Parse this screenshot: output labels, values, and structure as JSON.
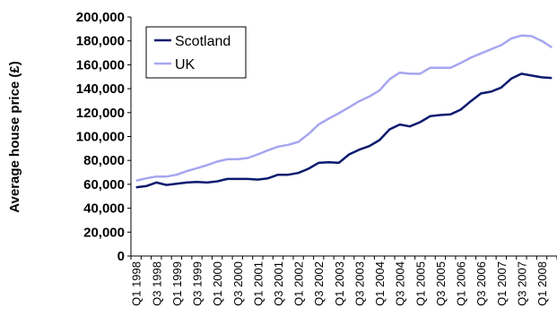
{
  "chart_data": {
    "type": "line",
    "ylabel": "Average house price (£)",
    "ylim": [
      0,
      200000
    ],
    "yticks": [
      0,
      20000,
      40000,
      60000,
      80000,
      100000,
      120000,
      140000,
      160000,
      180000,
      200000
    ],
    "ytick_labels": [
      "0",
      "20,000",
      "40,000",
      "60,000",
      "80,000",
      "100,000",
      "120,000",
      "140,000",
      "160,000",
      "180,000",
      "200,000"
    ],
    "x": [
      "Q1 1998",
      "Q2 1998",
      "Q3 1998",
      "Q4 1998",
      "Q1 1999",
      "Q2 1999",
      "Q3 1999",
      "Q4 1999",
      "Q1 2000",
      "Q2 2000",
      "Q3 2000",
      "Q4 2000",
      "Q1 2001",
      "Q2 2001",
      "Q3 2001",
      "Q4 2001",
      "Q1 2002",
      "Q2 2002",
      "Q3 2002",
      "Q4 2002",
      "Q1 2003",
      "Q2 2003",
      "Q3 2003",
      "Q4 2003",
      "Q1 2004",
      "Q2 2004",
      "Q3 2004",
      "Q4 2004",
      "Q1 2005",
      "Q2 2005",
      "Q3 2005",
      "Q4 2005",
      "Q1 2006",
      "Q2 2006",
      "Q3 2006",
      "Q4 2006",
      "Q1 2007",
      "Q2 2007",
      "Q3 2007",
      "Q4 2007",
      "Q1 2008",
      "Q2 2008"
    ],
    "xtick_labels": [
      "Q1 1998",
      "Q3 1998",
      "Q1 1999",
      "Q3 1999",
      "Q1 2000",
      "Q3 2000",
      "Q1 2001",
      "Q3 2001",
      "Q1 2002",
      "Q3 2002",
      "Q1 2003",
      "Q3 2003",
      "Q1 2004",
      "Q3 2004",
      "Q1 2005",
      "Q3 2005",
      "Q1 2006",
      "Q3 2006",
      "Q1 2007",
      "Q3 2007",
      "Q1 2008"
    ],
    "series": [
      {
        "name": "Scotland",
        "color": "#0b1a6e",
        "values": [
          57500,
          58500,
          61500,
          59500,
          60500,
          61500,
          62000,
          61500,
          62500,
          64500,
          64500,
          64500,
          64000,
          65000,
          68000,
          68000,
          69500,
          73000,
          78000,
          78500,
          78000,
          85000,
          89000,
          92000,
          97000,
          106000,
          110000,
          108500,
          112000,
          117000,
          118000,
          118500,
          122500,
          129500,
          136000,
          137500,
          141000,
          148500,
          152500,
          151000,
          149500,
          149000
        ]
      },
      {
        "name": "UK",
        "color": "#a6a6f0",
        "values": [
          63000,
          65000,
          66500,
          66500,
          68000,
          71000,
          73500,
          76000,
          79000,
          81000,
          81000,
          82000,
          85000,
          88500,
          91500,
          93000,
          95500,
          102000,
          110000,
          115000,
          119500,
          124500,
          129500,
          133500,
          138500,
          148000,
          153500,
          152500,
          152500,
          157500,
          157500,
          157500,
          161500,
          166000,
          169500,
          173000,
          176500,
          182000,
          184500,
          184000,
          180000,
          174500
        ]
      }
    ],
    "legend_position": "top-left",
    "grid": false
  }
}
